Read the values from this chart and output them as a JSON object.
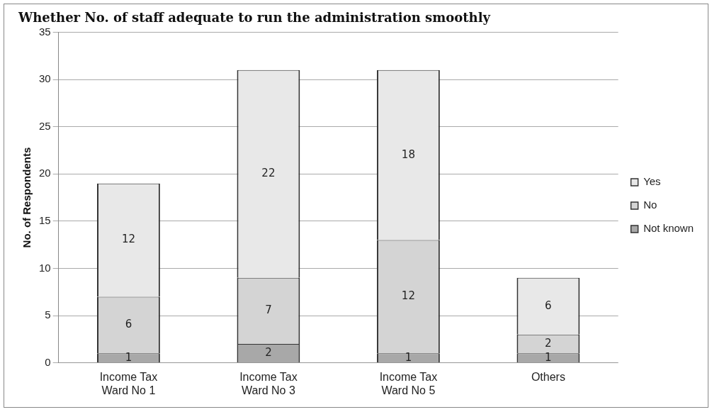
{
  "chart_data": {
    "type": "bar",
    "title": "Whether No. of staff adequate to run the administration smoothly",
    "ylabel": "No. of Respondents",
    "categories": [
      "Income Tax\nWard No 1",
      "Income Tax\nWard No 3",
      "Income Tax\nWard No 5",
      "Others"
    ],
    "stacked": true,
    "series": [
      {
        "name": "Not known",
        "color": "#a8a8a8",
        "values": [
          1,
          2,
          1,
          1
        ]
      },
      {
        "name": "No",
        "color": "#d4d4d4",
        "values": [
          6,
          7,
          12,
          2
        ]
      },
      {
        "name": "Yes",
        "color": "#e8e8e8",
        "values": [
          12,
          22,
          18,
          6
        ]
      }
    ],
    "ylim": [
      0,
      35
    ],
    "yticks": [
      0,
      5,
      10,
      15,
      20,
      25,
      30,
      35
    ],
    "grid": "y",
    "legend": "right",
    "data_labels": true
  }
}
